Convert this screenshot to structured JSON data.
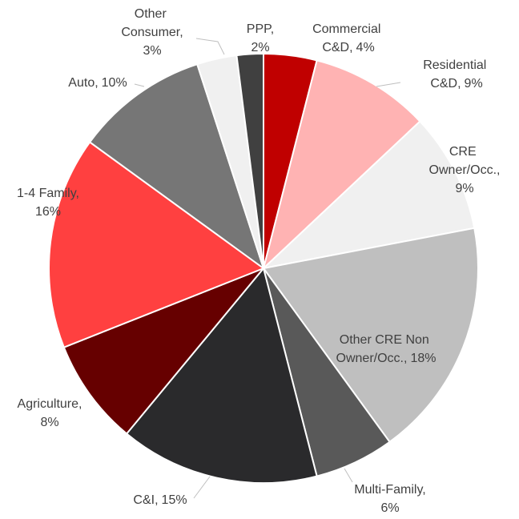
{
  "chart_data": {
    "type": "pie",
    "categories": [
      "Commercial C&D,",
      "Residential C&D,",
      "CRE Owner/Occ.,",
      "Other CRE Non Owner/Occ.,",
      "Multi-Family,",
      "C&I,",
      "Agriculture,",
      "1-4 Family,",
      "Auto,",
      "Other Consumer,",
      "PPP,"
    ],
    "values": [
      4,
      9,
      9,
      18,
      6,
      15,
      8,
      16,
      10,
      3,
      2
    ],
    "value_labels": [
      "4%",
      "9%",
      "9%",
      "18%",
      "6%",
      "15%",
      "8%",
      "16%",
      "10%",
      "3%",
      "2%"
    ],
    "colors": [
      "#c00000",
      "#ffb3b3",
      "#f0f0f0",
      "#bfbfbf",
      "#595959",
      "#2a2a2c",
      "#660000",
      "#ff4040",
      "#767676",
      "#f0f0f0",
      "#404040"
    ]
  }
}
